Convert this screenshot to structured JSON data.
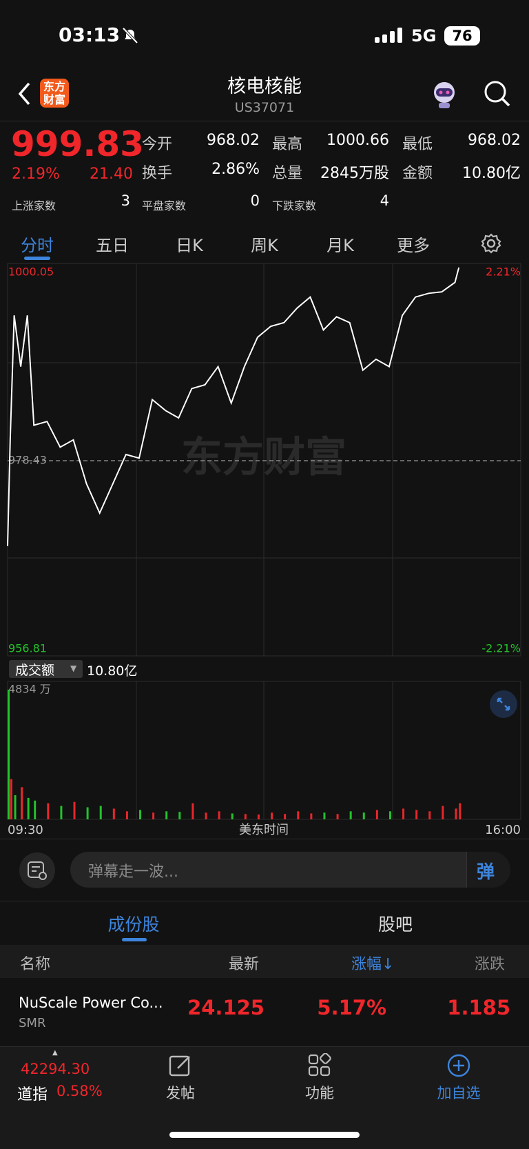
{
  "status_bar": {
    "time": "03:13",
    "network": "5G",
    "battery": "76"
  },
  "header": {
    "title": "核电核能",
    "code": "US37071"
  },
  "quote": {
    "price": "999.83",
    "change_pct": "2.19%",
    "change": "21.40",
    "fields": [
      {
        "label": "今开",
        "value": "968.02"
      },
      {
        "label": "最高",
        "value": "1000.66"
      },
      {
        "label": "最低",
        "value": "968.02"
      },
      {
        "label": "换手",
        "value": "2.86%"
      },
      {
        "label": "总量",
        "value": "2845万股"
      },
      {
        "label": "金额",
        "value": "10.80亿"
      }
    ],
    "breadth": [
      {
        "label": "上涨家数",
        "value": "3"
      },
      {
        "label": "平盘家数",
        "value": "0"
      },
      {
        "label": "下跌家数",
        "value": "4"
      }
    ]
  },
  "tabs": [
    "分时",
    "五日",
    "日K",
    "周K",
    "月K",
    "更多"
  ],
  "chart_data": [
    {
      "type": "line",
      "color": "#ffffff",
      "watermark": "东方财富",
      "x": [
        "09:30",
        "09:32",
        "09:35",
        "09:40",
        "09:45",
        "09:50",
        "10:00",
        "10:10",
        "10:20",
        "10:30",
        "10:40",
        "10:50",
        "11:00",
        "11:10",
        "11:20",
        "11:30",
        "11:40",
        "11:50",
        "12:00",
        "12:10",
        "12:20",
        "12:30",
        "12:40",
        "12:50",
        "13:00",
        "13:10",
        "13:20",
        "13:30",
        "13:40",
        "13:50",
        "14:00",
        "14:10",
        "14:20",
        "14:30",
        "14:40",
        "14:50",
        "15:00",
        "15:10",
        "15:13"
      ],
      "values": [
        968.98,
        980.74,
        994.53,
        988.85,
        994.53,
        982.36,
        982.77,
        979.93,
        980.74,
        975.87,
        972.63,
        975.87,
        979.12,
        978.71,
        985.2,
        983.99,
        983.17,
        986.42,
        986.83,
        988.85,
        984.8,
        988.85,
        992.1,
        993.32,
        993.72,
        995.34,
        996.56,
        992.91,
        994.37,
        993.72,
        988.45,
        989.67,
        988.85,
        994.53,
        996.56,
        996.97,
        997.13,
        998.18,
        999.83
      ],
      "xlim": [
        "09:30",
        "16:00"
      ],
      "ylim": [
        956.81,
        1000.05
      ],
      "yticks": [
        956.81,
        978.43,
        1000.05
      ],
      "y2lim": [
        -2.21,
        2.21
      ],
      "y2ticks": [
        {
          "value": -2.21,
          "label": "-2.21%"
        },
        {
          "value": 2.21,
          "label": "2.21%"
        }
      ]
    },
    {
      "type": "bar",
      "title": "成交额",
      "total": "10.80亿",
      "x": [
        "09:30",
        "09:32",
        "09:35",
        "09:40",
        "09:45",
        "09:50",
        "10:00",
        "10:10",
        "10:20",
        "10:30",
        "10:40",
        "10:50",
        "11:00",
        "11:10",
        "11:20",
        "11:30",
        "11:40",
        "11:50",
        "12:00",
        "12:10",
        "12:20",
        "12:30",
        "12:40",
        "12:50",
        "13:00",
        "13:10",
        "13:20",
        "13:30",
        "13:40",
        "13:50",
        "14:00",
        "14:10",
        "14:20",
        "14:30",
        "14:40",
        "14:50",
        "15:00",
        "15:10",
        "15:13"
      ],
      "values": [
        4834,
        1500,
        900,
        1200,
        800,
        700,
        600,
        500,
        650,
        450,
        500,
        400,
        300,
        350,
        250,
        300,
        280,
        600,
        250,
        300,
        220,
        200,
        180,
        250,
        200,
        300,
        220,
        250,
        200,
        300,
        250,
        350,
        300,
        400,
        350,
        300,
        500,
        400,
        600
      ],
      "colors": [
        "#22c32b",
        "#e8262b",
        "#22c32b",
        "#e8262b",
        "#22c32b",
        "#22c32b",
        "#e8262b",
        "#22c32b",
        "#e8262b",
        "#22c32b",
        "#22c32b",
        "#e8262b",
        "#e8262b",
        "#22c32b",
        "#e8262b",
        "#22c32b",
        "#22c32b",
        "#e8262b",
        "#e8262b",
        "#e8262b",
        "#22c32b",
        "#e8262b",
        "#e8262b",
        "#e8262b",
        "#e8262b",
        "#e8262b",
        "#e8262b",
        "#22c32b",
        "#e8262b",
        "#22c32b",
        "#22c32b",
        "#e8262b",
        "#22c32b",
        "#e8262b",
        "#e8262b",
        "#e8262b",
        "#e8262b",
        "#e8262b",
        "#e8262b"
      ],
      "xlim": [
        "09:30",
        "16:00"
      ],
      "xticks": [
        "09:30",
        "16:00"
      ],
      "x_label": "美东时间",
      "ylim": [
        0,
        4834
      ],
      "yticks": [
        {
          "value": 4834,
          "label": "4834 万"
        }
      ]
    }
  ],
  "comment_placeholder": "弹幕走一波...",
  "comment_button": "弹",
  "section_tabs": [
    "成份股",
    "股吧"
  ],
  "table": {
    "columns": [
      "名称",
      "最新",
      "涨幅↓",
      "涨跌"
    ],
    "rows": [
      {
        "name": "NuScale Power Co...",
        "symbol": "SMR",
        "cells": [
          "24.125",
          "5.17%",
          "1.185"
        ]
      }
    ]
  },
  "footer": {
    "index_value": "42294.30",
    "index_name": "道指",
    "index_change": "0.58%",
    "actions": [
      "发帖",
      "功能",
      "加自选"
    ]
  }
}
